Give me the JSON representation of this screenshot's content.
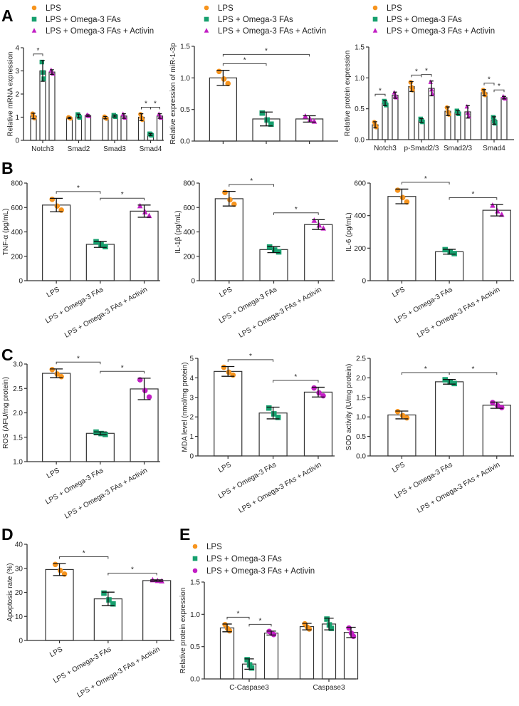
{
  "panels": [
    "A",
    "B",
    "C",
    "D",
    "E"
  ],
  "colors": {
    "LPS": "#f7941d",
    "Omega": "#16a06e",
    "Activin": "#c21ec4"
  },
  "legend_series": [
    "LPS",
    "LPS + Omega-3 FAs",
    "LPS + Omega-3 FAs + Activin"
  ],
  "chart_data": [
    {
      "panel": "A",
      "type": "bar",
      "grouped": true,
      "ylabel": "Relative mRNA expression",
      "ylim": [
        0,
        4
      ],
      "yticks": [
        "0",
        "1",
        "2",
        "3",
        "4"
      ],
      "categories": [
        "Notch3",
        "Smad2",
        "Smad3",
        "Smad4"
      ],
      "series": [
        {
          "name": "LPS",
          "values": [
            1.05,
            0.97,
            0.98,
            1.0
          ],
          "err": [
            0.12,
            0.03,
            0.05,
            0.15
          ],
          "marker": "circle"
        },
        {
          "name": "LPS + Omega-3 FAs",
          "values": [
            3.0,
            1.05,
            1.05,
            0.25
          ],
          "err": [
            0.45,
            0.08,
            0.04,
            0.04
          ],
          "marker": "square"
        },
        {
          "name": "LPS + Omega-3 FAs + Activin",
          "values": [
            2.95,
            1.07,
            1.05,
            1.05
          ],
          "err": [
            0.1,
            0.03,
            0.1,
            0.1
          ],
          "marker": "triangle"
        }
      ],
      "sig": [
        [
          0,
          0,
          1,
          "*"
        ],
        [
          3,
          0,
          1,
          "*"
        ],
        [
          3,
          1,
          2,
          "*"
        ]
      ]
    },
    {
      "panel": "A",
      "type": "bar",
      "grouped": false,
      "ylabel": "Relative expression of miR-1-3p",
      "ylim": [
        0,
        1.5
      ],
      "yticks": [
        "0.0",
        "0.5",
        "1.0",
        "1.5"
      ],
      "categories": [
        "LPS",
        "LPS + Omega-3 FAs",
        "LPS + Omega-3 FAs + Activin"
      ],
      "show_xlabels": false,
      "values": [
        1.0,
        0.35,
        0.35
      ],
      "err": [
        0.12,
        0.11,
        0.05
      ],
      "markers": [
        "circle",
        "square",
        "triangle"
      ],
      "sig": [
        [
          0,
          1,
          "*"
        ],
        [
          0,
          2,
          "*"
        ]
      ]
    },
    {
      "panel": "A",
      "type": "bar",
      "grouped": true,
      "ylabel": "Relative protein expression",
      "ylim": [
        0,
        1.5
      ],
      "yticks": [
        "0.0",
        "0.5",
        "1.0",
        "1.5"
      ],
      "categories": [
        "Notch3",
        "p-Smad2/3",
        "Smad2/3",
        "Smad4"
      ],
      "series": [
        {
          "name": "LPS",
          "values": [
            0.24,
            0.86,
            0.46,
            0.76
          ],
          "err": [
            0.05,
            0.08,
            0.07,
            0.05
          ],
          "marker": "circle"
        },
        {
          "name": "LPS + Omega-3 FAs",
          "values": [
            0.59,
            0.31,
            0.44,
            0.31
          ],
          "err": [
            0.04,
            0.03,
            0.03,
            0.06
          ],
          "marker": "square"
        },
        {
          "name": "LPS + Omega-3 FAs + Activin",
          "values": [
            0.72,
            0.83,
            0.45,
            0.68
          ],
          "err": [
            0.05,
            0.12,
            0.1,
            0.02
          ],
          "marker": "triangle"
        }
      ],
      "sig": [
        [
          0,
          0,
          1,
          "*"
        ],
        [
          1,
          0,
          1,
          "*"
        ],
        [
          1,
          1,
          2,
          "*"
        ],
        [
          3,
          0,
          1,
          "*"
        ],
        [
          3,
          1,
          2,
          "*"
        ]
      ]
    },
    {
      "panel": "B",
      "type": "bar",
      "grouped": false,
      "ylabel": "TNF-α (pg/mL)",
      "ylim": [
        0,
        800
      ],
      "yticks": [
        "0",
        "200",
        "400",
        "600",
        "800"
      ],
      "categories": [
        "LPS",
        "LPS + Omega-3 FAs",
        "LPS + Omega-3 FAs + Activin"
      ],
      "values": [
        620,
        298,
        570
      ],
      "err": [
        55,
        25,
        50
      ],
      "markers": [
        "circle",
        "square",
        "triangle"
      ],
      "sig": [
        [
          0,
          1,
          "*"
        ],
        [
          1,
          2,
          "*"
        ]
      ]
    },
    {
      "panel": "B",
      "type": "bar",
      "grouped": false,
      "ylabel": "IL-1β (pg/mL)",
      "ylim": [
        0,
        800
      ],
      "yticks": [
        "0",
        "200",
        "400",
        "600",
        "800"
      ],
      "categories": [
        "LPS",
        "LPS + Omega-3 FAs",
        "LPS + Omega-3 FAs + Activin"
      ],
      "values": [
        672,
        255,
        460
      ],
      "err": [
        60,
        25,
        40
      ],
      "markers": [
        "circle",
        "square",
        "triangle"
      ],
      "sig": [
        [
          0,
          1,
          "*"
        ],
        [
          1,
          2,
          "*"
        ]
      ]
    },
    {
      "panel": "B",
      "type": "bar",
      "grouped": false,
      "ylabel": "IL-6 (pg/mL)",
      "ylim": [
        0,
        600
      ],
      "yticks": [
        "0",
        "200",
        "400",
        "600"
      ],
      "categories": [
        "LPS",
        "LPS + Omega-3 FAs",
        "LPS + Omega-3 FAs + Activin"
      ],
      "values": [
        518,
        178,
        433
      ],
      "err": [
        45,
        15,
        35
      ],
      "markers": [
        "circle",
        "square",
        "triangle"
      ],
      "sig": [
        [
          0,
          1,
          "*"
        ],
        [
          1,
          2,
          "*"
        ]
      ]
    },
    {
      "panel": "C",
      "type": "bar",
      "grouped": false,
      "ylabel": "ROS (AFU/mg protein)",
      "ylim": [
        1,
        3
      ],
      "yticks": [
        "1.0",
        "1.5",
        "2.0",
        "2.5",
        "3.0"
      ],
      "categories": [
        "LPS",
        "LPS + Omega-3 FAs",
        "LPS + Omega-3 FAs + Activin"
      ],
      "values": [
        2.81,
        1.58,
        2.49
      ],
      "err": [
        0.09,
        0.03,
        0.22
      ],
      "markers": [
        "circle",
        "square",
        "circle"
      ],
      "sig": [
        [
          0,
          1,
          "*"
        ],
        [
          1,
          2,
          "*"
        ]
      ]
    },
    {
      "panel": "C",
      "type": "bar",
      "grouped": false,
      "ylabel": "MDA level (nmol/mg protein)",
      "ylim": [
        0,
        5
      ],
      "yticks": [
        "0",
        "1",
        "2",
        "3",
        "4",
        "5"
      ],
      "categories": [
        "LPS",
        "LPS + Omega-3 FAs",
        "LPS + Omega-3 FAs + Activin"
      ],
      "values": [
        4.33,
        2.2,
        3.27
      ],
      "err": [
        0.25,
        0.3,
        0.25
      ],
      "markers": [
        "circle",
        "square",
        "circle"
      ],
      "sig": [
        [
          0,
          1,
          "*"
        ],
        [
          1,
          2,
          "*"
        ]
      ]
    },
    {
      "panel": "C",
      "type": "bar",
      "grouped": false,
      "ylabel": "SOD activity (U/mg protein)",
      "ylim": [
        0,
        2.5
      ],
      "yticks": [
        "0.0",
        "0.5",
        "1.0",
        "1.5",
        "2.0",
        "2.5"
      ],
      "categories": [
        "LPS",
        "LPS + Omega-3 FAs",
        "LPS + Omega-3 FAs + Activin"
      ],
      "values": [
        1.05,
        1.9,
        1.3
      ],
      "err": [
        0.1,
        0.06,
        0.08
      ],
      "markers": [
        "circle",
        "square",
        "circle"
      ],
      "sig": [
        [
          0,
          1,
          "*"
        ],
        [
          1,
          2,
          "*"
        ]
      ]
    },
    {
      "panel": "D",
      "type": "bar",
      "grouped": false,
      "ylabel": "Apoptosis rate (%)",
      "ylim": [
        0,
        40
      ],
      "yticks": [
        "0",
        "10",
        "20",
        "30",
        "40"
      ],
      "categories": [
        "LPS",
        "LPS + Omega-3 FAs",
        "LPS + Omega-3 FAs + Activin"
      ],
      "values": [
        29.5,
        17.3,
        24.9
      ],
      "err": [
        2.5,
        2.8,
        0.3
      ],
      "markers": [
        "circle",
        "square",
        "triangle"
      ],
      "sig": [
        [
          0,
          1,
          "*"
        ],
        [
          1,
          2,
          "*"
        ]
      ]
    },
    {
      "panel": "E",
      "type": "bar",
      "grouped": true,
      "ylabel": "Relative protein expression",
      "ylim": [
        0,
        1.5
      ],
      "yticks": [
        "0.0",
        "0.5",
        "1.0",
        "1.5"
      ],
      "categories": [
        "C-Caspase3",
        "Caspase3"
      ],
      "series": [
        {
          "name": "LPS",
          "values": [
            0.79,
            0.81
          ],
          "err": [
            0.06,
            0.05
          ],
          "marker": "circle"
        },
        {
          "name": "LPS + Omega-3 FAs",
          "values": [
            0.23,
            0.85
          ],
          "err": [
            0.08,
            0.09
          ],
          "marker": "square"
        },
        {
          "name": "LPS + Omega-3 FAs + Activin",
          "values": [
            0.71,
            0.72
          ],
          "err": [
            0.03,
            0.08
          ],
          "marker": "circle"
        }
      ],
      "sig": [
        [
          0,
          0,
          1,
          "*"
        ],
        [
          0,
          1,
          2,
          "*"
        ]
      ]
    }
  ]
}
